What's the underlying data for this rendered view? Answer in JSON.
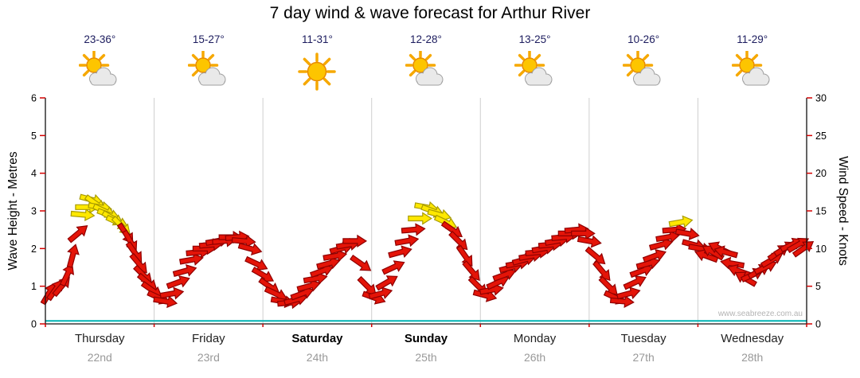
{
  "page": {
    "watermark": "www.seabreeze.com.au"
  },
  "chart_data": {
    "type": "wind-vector-timeseries",
    "title": "7 day wind & wave forecast for Arthur River",
    "ylabel_left": "Wave Height - Metres",
    "ylabel_right": "Wind Speed - Knots",
    "ylim_left": [
      0,
      6
    ],
    "ylim_right": [
      0,
      30
    ],
    "yticks_left": [
      0,
      1,
      2,
      3,
      4,
      5,
      6
    ],
    "yticks_right": [
      0,
      5,
      10,
      15,
      20,
      25,
      30
    ],
    "grid": "vertical-day-separators",
    "legend": "none",
    "arrow_color_threshold_knots": 13,
    "colors": {
      "arrow_low": "#e41408",
      "arrow_low_outline": "#8f0000",
      "arrow_high": "#ffe800",
      "arrow_high_outline": "#a89b00",
      "wave_line": "#00b4b4",
      "tick": "#d40000",
      "grid": "#cfcfcf",
      "axis": "#111111"
    },
    "days": [
      {
        "name": "Thursday",
        "date": "22nd",
        "temps": "23-36°",
        "icon": "partly-cloudy",
        "bold": false
      },
      {
        "name": "Friday",
        "date": "23rd",
        "temps": "15-27°",
        "icon": "partly-cloudy",
        "bold": false
      },
      {
        "name": "Saturday",
        "date": "24th",
        "temps": "11-31°",
        "icon": "sunny",
        "bold": true
      },
      {
        "name": "Sunday",
        "date": "25th",
        "temps": "12-28°",
        "icon": "partly-cloudy",
        "bold": true
      },
      {
        "name": "Monday",
        "date": "26th",
        "temps": "13-25°",
        "icon": "partly-cloudy",
        "bold": false
      },
      {
        "name": "Tuesday",
        "date": "27th",
        "temps": "10-26°",
        "icon": "partly-cloudy",
        "bold": false
      },
      {
        "name": "Wednesday",
        "date": "28th",
        "temps": "11-29°",
        "icon": "partly-cloudy",
        "bold": false
      }
    ],
    "wave_height_m": 0.08,
    "wind_points": [
      [
        0.03,
        4,
        60
      ],
      [
        0.09,
        4.5,
        55
      ],
      [
        0.15,
        5,
        50
      ],
      [
        0.2,
        6.5,
        65
      ],
      [
        0.25,
        9,
        75
      ],
      [
        0.3,
        12,
        40
      ],
      [
        0.34,
        14.5,
        -5
      ],
      [
        0.38,
        15.5,
        0
      ],
      [
        0.42,
        16.5,
        -15
      ],
      [
        0.46,
        16,
        -35
      ],
      [
        0.5,
        15.5,
        -10
      ],
      [
        0.54,
        15,
        -25
      ],
      [
        0.58,
        14.5,
        -20
      ],
      [
        0.62,
        14,
        -30
      ],
      [
        0.66,
        13.5,
        -25
      ],
      [
        0.7,
        13,
        -45
      ],
      [
        0.74,
        12,
        -55
      ],
      [
        0.78,
        11,
        -60
      ],
      [
        0.82,
        9.5,
        -55
      ],
      [
        0.86,
        8,
        -50
      ],
      [
        0.9,
        6.5,
        -45
      ],
      [
        0.94,
        5.5,
        -40
      ],
      [
        0.98,
        4.5,
        -35
      ],
      [
        1.04,
        3.5,
        -25
      ],
      [
        1.1,
        3,
        -10
      ],
      [
        1.16,
        4,
        10
      ],
      [
        1.22,
        5.5,
        20
      ],
      [
        1.28,
        7,
        15
      ],
      [
        1.34,
        8.5,
        10
      ],
      [
        1.4,
        9.5,
        5
      ],
      [
        1.46,
        10,
        0
      ],
      [
        1.52,
        10.5,
        5
      ],
      [
        1.58,
        11,
        10
      ],
      [
        1.64,
        11,
        5
      ],
      [
        1.7,
        11.5,
        0
      ],
      [
        1.76,
        11.5,
        5
      ],
      [
        1.82,
        11,
        -5
      ],
      [
        1.88,
        10,
        -15
      ],
      [
        1.94,
        8,
        -25
      ],
      [
        2.0,
        6.5,
        -30
      ],
      [
        2.06,
        5,
        -35
      ],
      [
        2.12,
        4,
        -25
      ],
      [
        2.18,
        3,
        -10
      ],
      [
        2.24,
        2.8,
        5
      ],
      [
        2.3,
        3.2,
        15
      ],
      [
        2.36,
        4,
        20
      ],
      [
        2.42,
        5,
        15
      ],
      [
        2.48,
        6,
        10
      ],
      [
        2.54,
        7,
        20
      ],
      [
        2.6,
        8,
        15
      ],
      [
        2.66,
        9,
        10
      ],
      [
        2.72,
        10,
        15
      ],
      [
        2.78,
        10.5,
        10
      ],
      [
        2.84,
        11,
        0
      ],
      [
        2.9,
        8,
        -35
      ],
      [
        2.96,
        5,
        -45
      ],
      [
        3.02,
        3.5,
        -20
      ],
      [
        3.08,
        4,
        15
      ],
      [
        3.14,
        5.5,
        30
      ],
      [
        3.2,
        7.5,
        25
      ],
      [
        3.26,
        9.5,
        15
      ],
      [
        3.32,
        11,
        10
      ],
      [
        3.38,
        12.5,
        5
      ],
      [
        3.44,
        14,
        0
      ],
      [
        3.5,
        15.5,
        -10
      ],
      [
        3.56,
        15,
        -20
      ],
      [
        3.62,
        14.5,
        -15
      ],
      [
        3.68,
        13.5,
        -25
      ],
      [
        3.74,
        12.5,
        -35
      ],
      [
        3.8,
        11,
        -45
      ],
      [
        3.86,
        9,
        -55
      ],
      [
        3.92,
        7,
        -50
      ],
      [
        3.98,
        5,
        -45
      ],
      [
        4.04,
        3.8,
        -15
      ],
      [
        4.1,
        4.5,
        10
      ],
      [
        4.16,
        5.5,
        25
      ],
      [
        4.22,
        6.5,
        20
      ],
      [
        4.28,
        7.5,
        15
      ],
      [
        4.34,
        8,
        10
      ],
      [
        4.4,
        8.5,
        15
      ],
      [
        4.46,
        9,
        10
      ],
      [
        4.52,
        9.5,
        5
      ],
      [
        4.58,
        10,
        10
      ],
      [
        4.64,
        10.5,
        5
      ],
      [
        4.7,
        11,
        10
      ],
      [
        4.76,
        11.5,
        5
      ],
      [
        4.82,
        12,
        0
      ],
      [
        4.88,
        12.5,
        5
      ],
      [
        4.94,
        12,
        0
      ],
      [
        5.0,
        11,
        -10
      ],
      [
        5.06,
        9,
        -40
      ],
      [
        5.12,
        7,
        -50
      ],
      [
        5.18,
        5,
        -45
      ],
      [
        5.24,
        3.5,
        -25
      ],
      [
        5.3,
        3,
        -5
      ],
      [
        5.36,
        4,
        15
      ],
      [
        5.42,
        5.5,
        25
      ],
      [
        5.48,
        7,
        20
      ],
      [
        5.54,
        8,
        15
      ],
      [
        5.6,
        9,
        20
      ],
      [
        5.66,
        10.5,
        15
      ],
      [
        5.72,
        11.5,
        10
      ],
      [
        5.78,
        12.5,
        5
      ],
      [
        5.84,
        13.5,
        10
      ],
      [
        5.9,
        12,
        -10
      ],
      [
        5.96,
        10.5,
        -15
      ],
      [
        6.02,
        10,
        -10
      ],
      [
        6.08,
        9,
        160
      ],
      [
        6.14,
        9.5,
        150
      ],
      [
        6.2,
        10,
        155
      ],
      [
        6.26,
        9.5,
        165
      ],
      [
        6.32,
        8,
        170
      ],
      [
        6.38,
        7,
        160
      ],
      [
        6.44,
        6,
        150
      ],
      [
        6.5,
        6.5,
        25
      ],
      [
        6.56,
        7,
        30
      ],
      [
        6.62,
        7.5,
        25
      ],
      [
        6.68,
        8.5,
        30
      ],
      [
        6.74,
        9.5,
        35
      ],
      [
        6.8,
        10,
        30
      ],
      [
        6.86,
        10.5,
        25
      ],
      [
        6.92,
        10.5,
        30
      ],
      [
        6.97,
        10,
        35
      ]
    ]
  }
}
